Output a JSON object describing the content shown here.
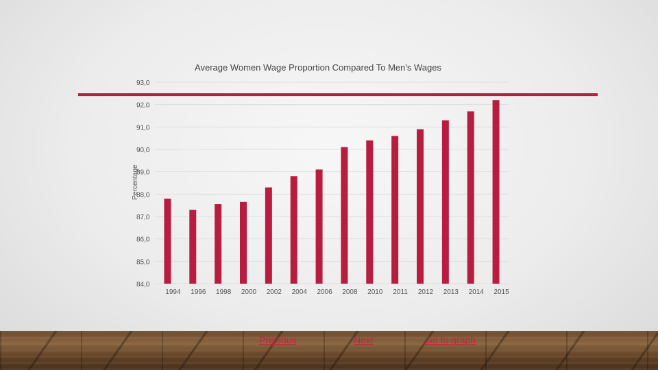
{
  "chart_data": {
    "type": "bar",
    "title": "Average Women Wage Proportion Compared To Men's Wages",
    "xlabel": "",
    "ylabel": "Percentage",
    "ylim": [
      84.0,
      93.0
    ],
    "yticks": [
      "93,0",
      "92,0",
      "91,0",
      "90,0",
      "89,0",
      "88,0",
      "87,0",
      "86,0",
      "85,0",
      "84,0"
    ],
    "categories": [
      "1994",
      "1996",
      "1998",
      "2000",
      "2002",
      "2004",
      "2006",
      "2008",
      "2010",
      "2011",
      "2012",
      "2013",
      "2014",
      "2015"
    ],
    "values": [
      87.8,
      87.3,
      87.55,
      87.65,
      88.3,
      88.8,
      89.1,
      90.1,
      90.4,
      90.6,
      90.9,
      91.3,
      91.7,
      92.2
    ],
    "reference_line": 92.2,
    "grid": true,
    "legend": "none"
  },
  "colors": {
    "bar": "#b81d3f",
    "reference_line": "#b81d3f",
    "link": "#c91f3f"
  },
  "nav": {
    "previous": "Previous",
    "next": "Next",
    "goto": "Go to graph"
  }
}
